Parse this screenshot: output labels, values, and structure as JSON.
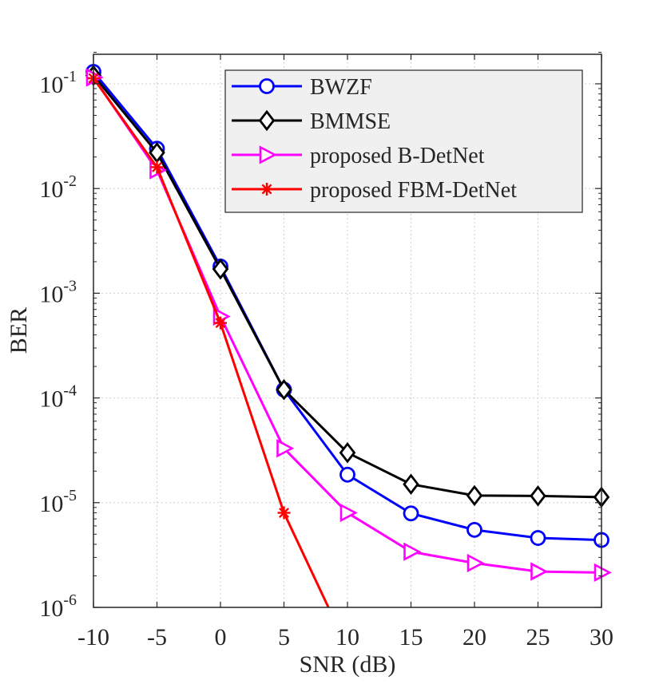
{
  "chart_data": {
    "type": "line",
    "xlabel": "SNR (dB)",
    "ylabel": "BER",
    "xlim": [
      -10,
      30
    ],
    "ylim": [
      1e-06,
      0.2
    ],
    "yscale": "log",
    "grid": true,
    "legend_position": "top-right",
    "x_ticks": [
      "-10",
      "-5",
      "0",
      "5",
      "10",
      "15",
      "20",
      "25",
      "30"
    ],
    "y_ticks": [
      {
        "base": "10",
        "exp": "-6"
      },
      {
        "base": "10",
        "exp": "-5"
      },
      {
        "base": "10",
        "exp": "-4"
      },
      {
        "base": "10",
        "exp": "-3"
      },
      {
        "base": "10",
        "exp": "-2"
      },
      {
        "base": "10",
        "exp": "-1"
      }
    ],
    "series": [
      {
        "name": "BWZF",
        "color": "#0000ff",
        "marker": "circle",
        "x": [
          -10,
          -5,
          0,
          5,
          10,
          15,
          20,
          25,
          30
        ],
        "y": [
          0.13,
          0.024,
          0.0018,
          0.00012,
          1.85e-05,
          7.9e-06,
          5.5e-06,
          4.6e-06,
          4.4e-06
        ]
      },
      {
        "name": "BMMSE",
        "color": "#000000",
        "marker": "diamond",
        "x": [
          -10,
          -5,
          0,
          5,
          10,
          15,
          20,
          25,
          30
        ],
        "y": [
          0.12,
          0.022,
          0.0017,
          0.00012,
          3e-05,
          1.5e-05,
          1.17e-05,
          1.16e-05,
          1.13e-05
        ]
      },
      {
        "name": "proposed B-DetNet",
        "color": "#ff00ff",
        "marker": "triangle-right",
        "x": [
          -10,
          -5,
          0,
          5,
          10,
          15,
          20,
          25,
          30
        ],
        "y": [
          0.115,
          0.015,
          0.0006,
          3.3e-05,
          8e-06,
          3.4e-06,
          2.65e-06,
          2.2e-06,
          2.15e-06
        ]
      },
      {
        "name": "proposed FBM-DetNet",
        "color": "#ff0000",
        "marker": "asterisk",
        "x": [
          -10,
          -5,
          0,
          5
        ],
        "y": [
          0.113,
          0.016,
          0.00052,
          8e-06
        ],
        "line_extension": {
          "x": 8.5,
          "y": 1e-06
        }
      }
    ]
  }
}
